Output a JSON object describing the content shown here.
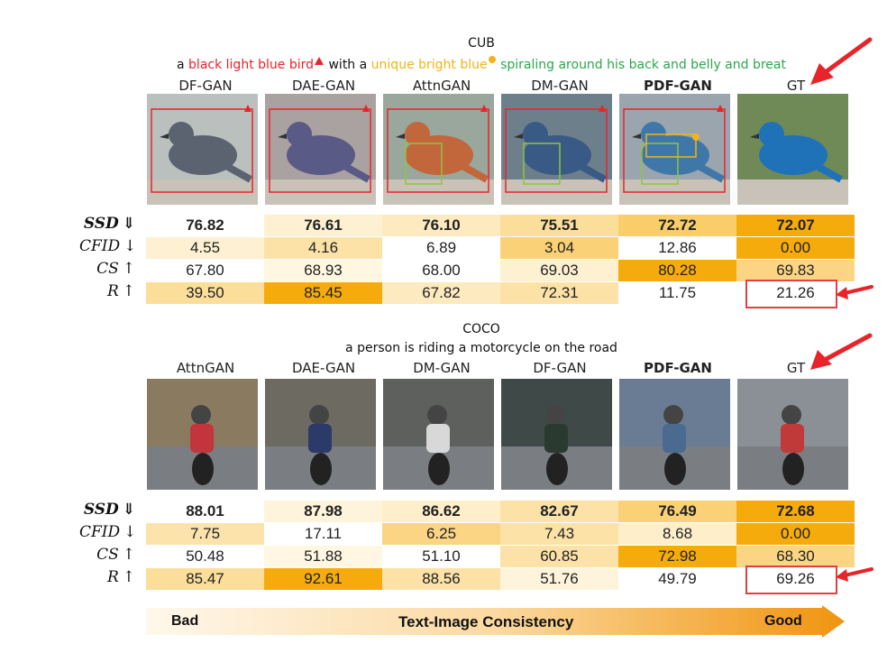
{
  "cub": {
    "title": "CUB",
    "caption": {
      "p1": "a ",
      "p2": "black light blue bird",
      "p3": " with a ",
      "p4": "unique bright blue",
      "p5": " spiraling around his back and belly and breat"
    },
    "columns": [
      "DF-GAN",
      "DAE-GAN",
      "AttnGAN",
      "DM-GAN",
      "PDF-GAN",
      "GT"
    ],
    "bold_column": 4,
    "rows": [
      {
        "metric": "SSD",
        "arrow": "⇓",
        "bold": true,
        "values": [
          "76.82",
          "76.61",
          "76.10",
          "75.51",
          "72.72",
          "72.07"
        ],
        "levels": [
          0.0,
          0.12,
          0.2,
          0.35,
          0.55,
          0.95
        ]
      },
      {
        "metric": "CFID",
        "arrow": "↓",
        "bold": false,
        "values": [
          "4.55",
          "4.16",
          "6.89",
          "3.04",
          "12.86",
          "0.00"
        ],
        "levels": [
          0.12,
          0.3,
          0.0,
          0.5,
          0.0,
          0.95
        ]
      },
      {
        "metric": "CS",
        "arrow": "↑",
        "bold": false,
        "values": [
          "67.80",
          "68.93",
          "68.00",
          "69.03",
          "80.28",
          "69.83"
        ],
        "levels": [
          0.0,
          0.05,
          0.0,
          0.12,
          0.95,
          0.45
        ]
      },
      {
        "metric": "R",
        "arrow": "↑",
        "bold": false,
        "values": [
          "39.50",
          "85.45",
          "67.82",
          "72.31",
          "11.75",
          "21.26"
        ],
        "levels": [
          0.35,
          0.95,
          0.2,
          0.3,
          0.0,
          0.0
        ]
      }
    ],
    "highlight_value": "21.26"
  },
  "coco": {
    "title": "COCO",
    "caption": "a person is riding a motorcycle on the road",
    "columns": [
      "AttnGAN",
      "DAE-GAN",
      "DM-GAN",
      "DF-GAN",
      "PDF-GAN",
      "GT"
    ],
    "bold_column": 4,
    "rows": [
      {
        "metric": "SSD",
        "arrow": "⇓",
        "bold": true,
        "values": [
          "88.01",
          "87.98",
          "86.62",
          "82.67",
          "76.49",
          "72.68"
        ],
        "levels": [
          0.0,
          0.08,
          0.15,
          0.3,
          0.5,
          0.95
        ]
      },
      {
        "metric": "CFID",
        "arrow": "↓",
        "bold": false,
        "values": [
          "7.75",
          "17.11",
          "6.25",
          "7.43",
          "8.68",
          "0.00"
        ],
        "levels": [
          0.28,
          0.0,
          0.45,
          0.3,
          0.15,
          0.95
        ]
      },
      {
        "metric": "CS",
        "arrow": "↑",
        "bold": false,
        "values": [
          "50.48",
          "51.88",
          "51.10",
          "60.85",
          "72.98",
          "68.30"
        ],
        "levels": [
          0.0,
          0.05,
          0.0,
          0.3,
          0.95,
          0.45
        ]
      },
      {
        "metric": "R",
        "arrow": "↑",
        "bold": false,
        "values": [
          "85.47",
          "92.61",
          "88.56",
          "51.76",
          "49.79",
          "69.26"
        ],
        "levels": [
          0.35,
          0.95,
          0.3,
          0.08,
          0.0,
          0.0
        ]
      }
    ],
    "highlight_value": "69.26"
  },
  "scale": {
    "left": "Bad",
    "center": "Text-Image Consistency",
    "right": "Good"
  },
  "colors": {
    "accent_orange": "#f5a700",
    "light_yellow": "#fff6dc",
    "red": "#e8242a",
    "yellow": "#f2b31b",
    "green": "#2aa84a"
  }
}
